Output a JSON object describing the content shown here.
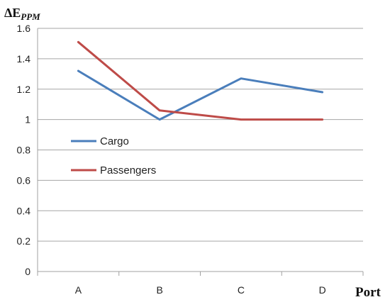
{
  "chart_data": {
    "type": "line",
    "title": "",
    "ylabel": "ΔE",
    "ylabel_subscript": "PPM",
    "xlabel": "Port",
    "categories": [
      "A",
      "B",
      "C",
      "D"
    ],
    "ylim": [
      0,
      1.6
    ],
    "yticks": [
      "0",
      "0.2",
      "0.4",
      "0.6",
      "0.8",
      "1",
      "1.2",
      "1.4",
      "1.6"
    ],
    "grid": "horizontal",
    "legend_position": "inside-left",
    "series": [
      {
        "name": "Cargo",
        "color": "#4A7EBB",
        "values": [
          1.32,
          1.0,
          1.27,
          1.18
        ]
      },
      {
        "name": "Passengers",
        "color": "#BE4B48",
        "values": [
          1.51,
          1.06,
          1.0,
          1.0
        ]
      }
    ]
  }
}
